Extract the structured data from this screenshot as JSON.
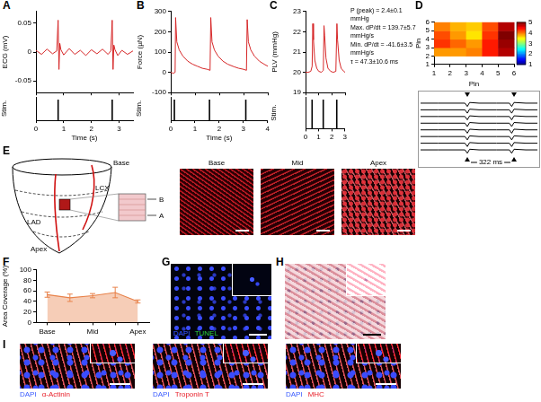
{
  "chart_data": [
    {
      "panel": "A",
      "type": "line",
      "ylabel": "ECG (mV)",
      "color": "#d62728",
      "x": [
        0,
        0.2,
        0.4,
        0.6,
        0.75,
        0.8,
        0.83,
        0.86,
        0.9,
        1.0,
        1.2,
        1.4,
        1.6,
        1.8,
        2.0,
        2.2,
        2.4,
        2.6,
        2.7,
        2.75,
        2.78,
        2.81,
        2.85,
        2.95,
        3.1,
        3.3,
        3.5
      ],
      "values": [
        0.003,
        -0.004,
        0.005,
        -0.003,
        0.002,
        0.055,
        -0.03,
        0.015,
        0.004,
        -0.005,
        0.006,
        -0.004,
        0.003,
        -0.006,
        0.004,
        -0.003,
        0.005,
        -0.004,
        0.002,
        0.055,
        -0.03,
        0.012,
        0.004,
        -0.006,
        0.003,
        -0.004,
        0.002
      ],
      "xlim": [
        0,
        3.5
      ],
      "xticks": [
        0,
        1,
        2,
        3
      ],
      "ylim": [
        -0.07,
        0.07
      ],
      "yticks": [
        -0.05,
        0,
        0.05
      ],
      "tick_labels": "y"
    },
    {
      "type": "impulse",
      "ylabel": "Stim.",
      "xlabel": "Time (s)",
      "color": "#000000",
      "x": [
        0.8,
        2.75
      ],
      "xlim": [
        0,
        3.5
      ],
      "xticks": [
        0,
        1,
        2,
        3
      ],
      "tick_labels": "x"
    },
    {
      "panel": "B",
      "type": "line",
      "ylabel": "Force (µN)",
      "color": "#d62728",
      "x": [
        0,
        0.1,
        0.18,
        0.2,
        0.25,
        0.35,
        0.5,
        0.7,
        0.9,
        1.1,
        1.3,
        1.5,
        1.62,
        1.65,
        1.7,
        1.8,
        1.95,
        2.15,
        2.35,
        2.6,
        2.8,
        3.0,
        3.12,
        3.15,
        3.2,
        3.3,
        3.45,
        3.65,
        3.85,
        4.0
      ],
      "values": [
        0,
        -5,
        0,
        270,
        150,
        110,
        80,
        55,
        40,
        30,
        20,
        15,
        10,
        270,
        150,
        110,
        80,
        55,
        40,
        28,
        20,
        15,
        10,
        260,
        150,
        110,
        80,
        55,
        40,
        30
      ],
      "xlim": [
        0,
        4
      ],
      "xticks": [
        0,
        1,
        2,
        3,
        4
      ],
      "ylim": [
        -100,
        300
      ],
      "yticks": [
        -100,
        0,
        100,
        200,
        300
      ],
      "tick_labels": "y"
    },
    {
      "type": "impulse",
      "ylabel": "Stim.",
      "xlabel": "Time (s)",
      "color": "#000000",
      "x": [
        0.15,
        1.6,
        3.1
      ],
      "xlim": [
        0,
        4
      ],
      "xticks": [
        0,
        1,
        2,
        3,
        4
      ],
      "tick_labels": "x"
    },
    {
      "panel": "C",
      "type": "line",
      "ylabel": "PLV (mmHg)",
      "color": "#d62728",
      "x": [
        0,
        0.2,
        0.4,
        0.5,
        0.55,
        0.6,
        0.7,
        0.85,
        1.0,
        1.2,
        1.35,
        1.4,
        1.45,
        1.55,
        1.7,
        1.9,
        2.1,
        2.3,
        2.38,
        2.43,
        2.55,
        2.7,
        2.9,
        3.0
      ],
      "values": [
        20.0,
        20.0,
        20.05,
        20.3,
        22.4,
        21.6,
        20.6,
        20.2,
        20.05,
        20.0,
        20.1,
        22.3,
        21.8,
        20.7,
        20.2,
        20.05,
        20.0,
        20.05,
        22.4,
        21.6,
        20.6,
        20.2,
        20.05,
        20.0
      ],
      "xlim": [
        0,
        3
      ],
      "xticks": [
        0,
        1,
        2,
        3
      ],
      "ylim": [
        19,
        23
      ],
      "yticks": [
        19,
        20,
        21,
        22,
        23
      ],
      "tick_labels": "y",
      "annotations": [
        "P (peak) = 2.4±0.1 mmHg",
        "Max. dP/dt = 139.7±5.7 mmHg/s",
        "Min. dP/dt = -41.6±3.5 mmHg/s",
        "τ = 47.3±10.6 ms"
      ]
    },
    {
      "type": "impulse",
      "ylabel": "Stim.",
      "color": "#000000",
      "x": [
        0.5,
        1.35,
        2.38
      ],
      "xlim": [
        0,
        3
      ],
      "xticks": [
        0,
        1,
        2,
        3
      ],
      "tick_labels": "x"
    },
    {
      "panel": "D",
      "type": "heatmap",
      "xlabel": "Pin",
      "ylabel": "Pin",
      "xlim": [
        1,
        6
      ],
      "ylim": [
        1,
        6
      ],
      "xticks": [
        1,
        2,
        3,
        4,
        5,
        6
      ],
      "yticks": [
        1,
        2,
        3,
        4,
        5,
        6
      ],
      "z": [
        [
          null,
          null,
          null,
          null,
          null
        ],
        [
          3.9,
          3.9,
          4.0,
          4.4,
          4.8
        ],
        [
          4.3,
          4.1,
          3.9,
          4.4,
          4.9
        ],
        [
          4.2,
          3.9,
          3.6,
          4.3,
          5.0
        ],
        [
          4.0,
          3.8,
          3.7,
          4.2,
          4.8
        ]
      ],
      "colorbar": {
        "range": [
          1,
          5
        ],
        "ticks": [
          1,
          2,
          3,
          4,
          5
        ]
      }
    },
    {
      "type": "line",
      "color": "#000000",
      "tick_labels": false,
      "x": [
        0,
        15,
        30,
        38,
        40,
        42,
        50,
        65,
        76,
        78,
        80,
        90,
        100
      ],
      "series": [
        {
          "values": [
            90,
            90,
            90,
            90,
            85,
            91,
            90,
            90,
            90,
            85,
            91,
            90,
            90
          ]
        },
        {
          "values": [
            80,
            80,
            80,
            80,
            75,
            81,
            80,
            80,
            80,
            75,
            81,
            80,
            80
          ]
        },
        {
          "values": [
            70,
            70,
            70,
            70,
            65,
            71,
            70,
            70,
            70,
            65,
            71,
            70,
            70
          ]
        },
        {
          "values": [
            60,
            60,
            60,
            60,
            55,
            61,
            60,
            60,
            60,
            55,
            61,
            60,
            60
          ]
        },
        {
          "values": [
            50,
            50,
            50,
            50,
            45,
            51,
            50,
            50,
            50,
            45,
            51,
            50,
            50
          ]
        },
        {
          "values": [
            40,
            40,
            40,
            40,
            35,
            41,
            40,
            40,
            40,
            35,
            41,
            40,
            40
          ]
        },
        {
          "values": [
            30,
            30,
            30,
            30,
            25,
            31,
            30,
            30,
            30,
            25,
            31,
            30,
            30
          ]
        },
        {
          "values": [
            20,
            20,
            20,
            20,
            15,
            21,
            20,
            20,
            20,
            15,
            21,
            20,
            20
          ]
        }
      ],
      "xlim": [
        0,
        100
      ],
      "ylim": [
        12,
        98
      ],
      "events": [
        40,
        80
      ],
      "annotations": [
        "322 ms"
      ]
    },
    {
      "panel": "F",
      "type": "area",
      "ylabel": "Area Coverage (%)",
      "color": "#e8824a",
      "categories": [
        "Base",
        null,
        "Mid",
        null,
        "Apex"
      ],
      "values": [
        53,
        47,
        51,
        57,
        40
      ],
      "errors": [
        5,
        7,
        4,
        10,
        3
      ],
      "ylim": [
        0,
        100
      ],
      "yticks": [
        0,
        20,
        40,
        60,
        80,
        100
      ]
    }
  ],
  "images": [
    {
      "panel": "E",
      "diagram": {
        "labels": [
          "Base",
          "LCX",
          "LAD",
          "Apex"
        ],
        "section_labels": [
          "B",
          "A"
        ]
      },
      "micrographs": [
        {
          "title": "Base"
        },
        {
          "title": "Mid"
        },
        {
          "title": "Apex"
        }
      ]
    },
    {
      "panel": "G",
      "stains": [
        {
          "text": "DAPI",
          "color": "#3a5bff"
        },
        {
          "text": "TUNEL",
          "color": "#2ecc40"
        }
      ]
    },
    {
      "panel": "H"
    },
    {
      "panel": "I",
      "micrographs": [
        {
          "stains": [
            {
              "text": "DAPI",
              "color": "#3a5bff"
            },
            {
              "text": "α-Actinin",
              "color": "#e8202a"
            }
          ]
        },
        {
          "stains": [
            {
              "text": "DAPI",
              "color": "#3a5bff"
            },
            {
              "text": "Troponin T",
              "color": "#e8202a"
            }
          ]
        },
        {
          "stains": [
            {
              "text": "DAPI",
              "color": "#3a5bff"
            },
            {
              "text": "MHC",
              "color": "#e8202a"
            }
          ]
        }
      ]
    }
  ]
}
